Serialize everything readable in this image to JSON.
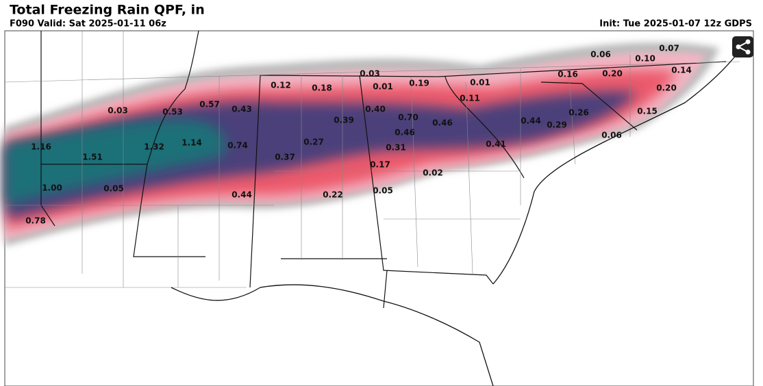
{
  "header": {
    "title": "Total Freezing Rain QPF, in",
    "valid": "F090 Valid: Sat 2025-01-11 06z",
    "init": "Init: Tue 2025-01-07 12z GDPS"
  },
  "labels": [
    "0.06",
    "0.07",
    "0.10",
    "0.14",
    "0.16",
    "0.20",
    "0.20",
    "0.03",
    "0.12",
    "0.18",
    "0.01",
    "0.19",
    "0.01",
    "0.11",
    "0.03",
    "0.53",
    "0.57",
    "0.43",
    "0.40",
    "0.70",
    "0.39",
    "0.46",
    "0.46",
    "0.26",
    "0.15",
    "0.44",
    "0.29",
    "0.06",
    "0.41",
    "0.27",
    "0.31",
    "1.16",
    "1.32",
    "1.14",
    "0.74",
    "1.51",
    "0.37",
    "0.17",
    "0.02",
    "1.00",
    "0.05",
    "0.44",
    "0.22",
    "0.05",
    "0.78"
  ]
}
